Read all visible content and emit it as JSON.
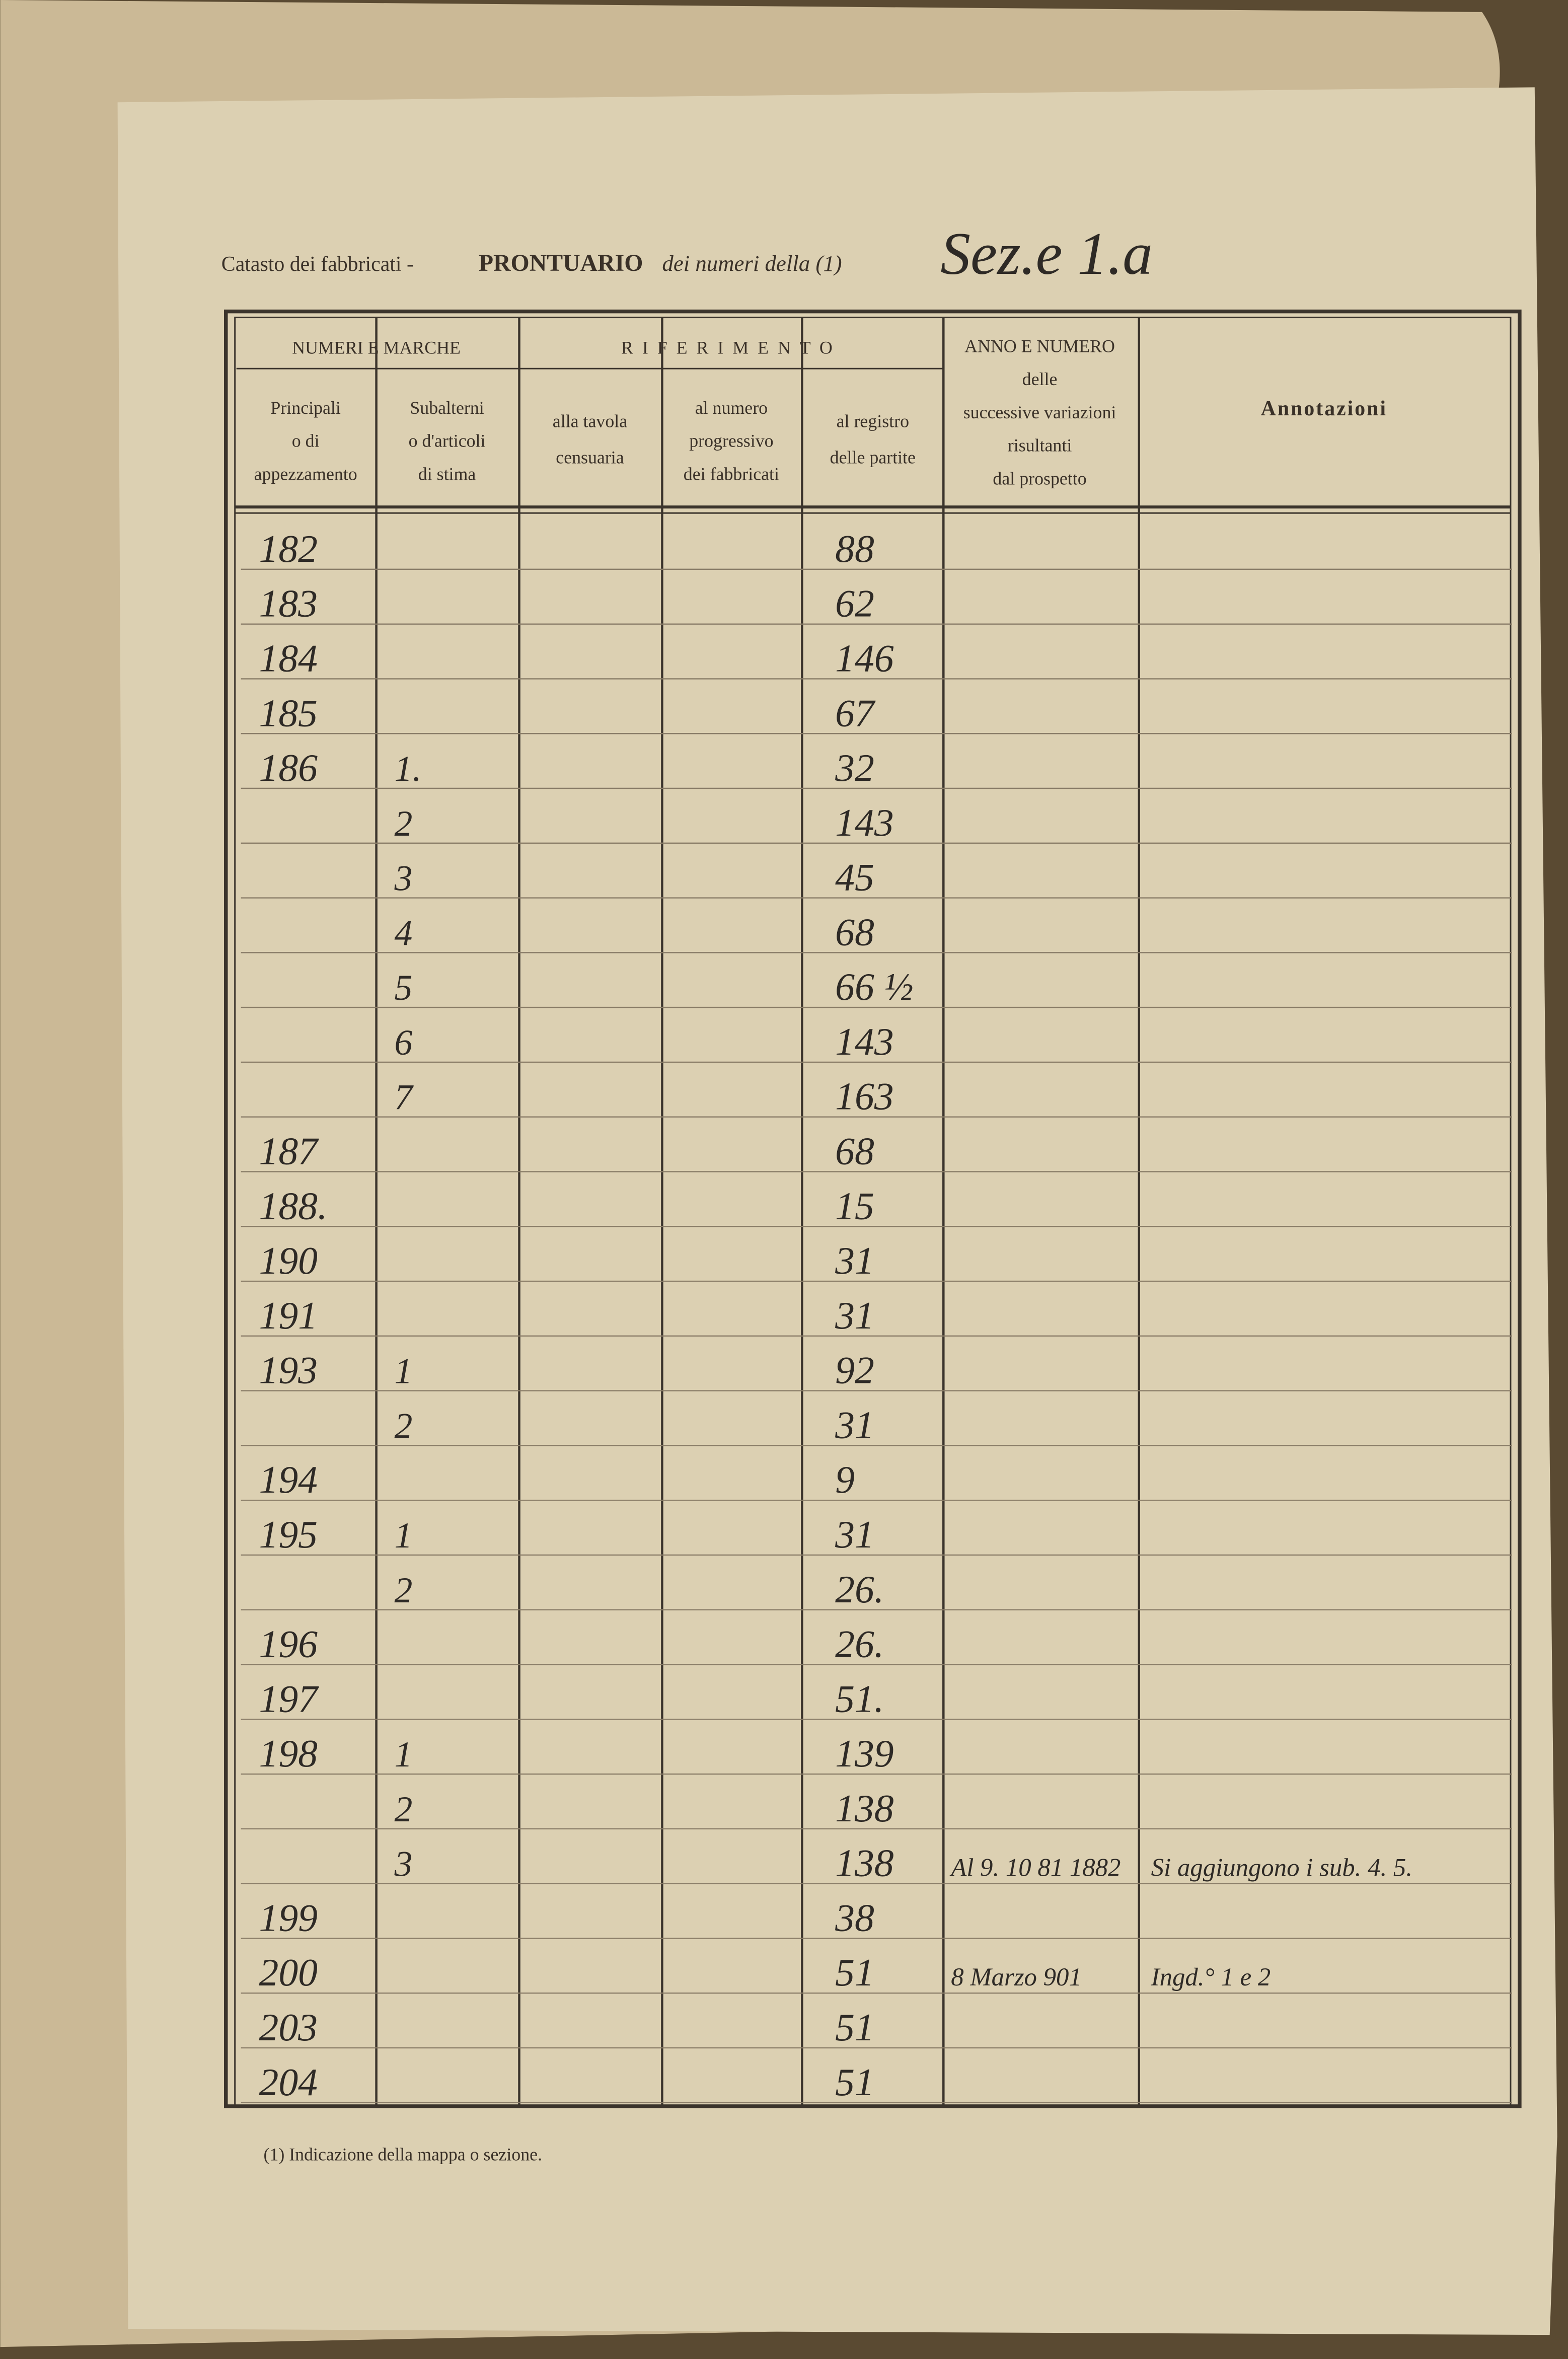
{
  "header": {
    "prefix": "Catasto dei fabbricati -",
    "title": "PRONTUARIO",
    "suffix": "dei numeri della (1)",
    "section": "Sez.e 1.a"
  },
  "table": {
    "groups": [
      "NUMERI E MARCHE",
      "RIFERIMENTO"
    ],
    "columns": [
      [
        "Principali",
        "o di",
        "appezzamento"
      ],
      [
        "Subalterni",
        "o d'articoli",
        "di stima"
      ],
      [
        "alla tavola",
        "censuaria"
      ],
      [
        "al numero",
        "progressivo",
        "dei fabbricati"
      ],
      [
        "al registro",
        "delle partite"
      ],
      [
        "ANNO E NUMERO",
        "delle",
        "successive variazioni",
        "risultanti",
        "dal prospetto"
      ],
      [
        "Annotazioni"
      ]
    ],
    "rows": [
      {
        "principale": "182",
        "registro": "88"
      },
      {
        "principale": "183",
        "registro": "62"
      },
      {
        "principale": "184",
        "registro": "146"
      },
      {
        "principale": "185",
        "registro": "67"
      },
      {
        "principale": "186",
        "subalterno": "1.",
        "registro": "32"
      },
      {
        "subalterno": "2",
        "registro": "143"
      },
      {
        "subalterno": "3",
        "registro": "45"
      },
      {
        "subalterno": "4",
        "registro": "68"
      },
      {
        "subalterno": "5",
        "registro": "66 ½"
      },
      {
        "subalterno": "6",
        "registro": "143"
      },
      {
        "subalterno": "7",
        "registro": "163"
      },
      {
        "principale": "187",
        "registro": "68"
      },
      {
        "principale": "188.",
        "registro": "15"
      },
      {
        "principale": "190",
        "registro": "31"
      },
      {
        "principale": "191",
        "registro": "31"
      },
      {
        "principale": "193",
        "subalterno": "1",
        "registro": "92"
      },
      {
        "subalterno": "2",
        "registro": "31"
      },
      {
        "principale": "194",
        "registro": "9"
      },
      {
        "principale": "195",
        "subalterno": "1",
        "registro": "31"
      },
      {
        "subalterno": "2",
        "registro": "26."
      },
      {
        "principale": "196",
        "registro": "26."
      },
      {
        "principale": "197",
        "registro": "51."
      },
      {
        "principale": "198",
        "subalterno": "1",
        "registro": "139"
      },
      {
        "subalterno": "2",
        "registro": "138"
      },
      {
        "subalterno": "3",
        "registro": "138",
        "variazione": "Al 9. 10 81 1882",
        "annotazione": "Si aggiungono i sub. 4. 5."
      },
      {
        "principale": "199",
        "registro": "38"
      },
      {
        "principale": "200",
        "registro": "51",
        "variazione": "8 Marzo 901",
        "annotazione": "Ingd.° 1 e 2"
      },
      {
        "principale": "203",
        "registro": "51"
      },
      {
        "principale": "204",
        "registro": "51"
      }
    ]
  },
  "footnote": "(1) Indicazione della mappa o sezione."
}
